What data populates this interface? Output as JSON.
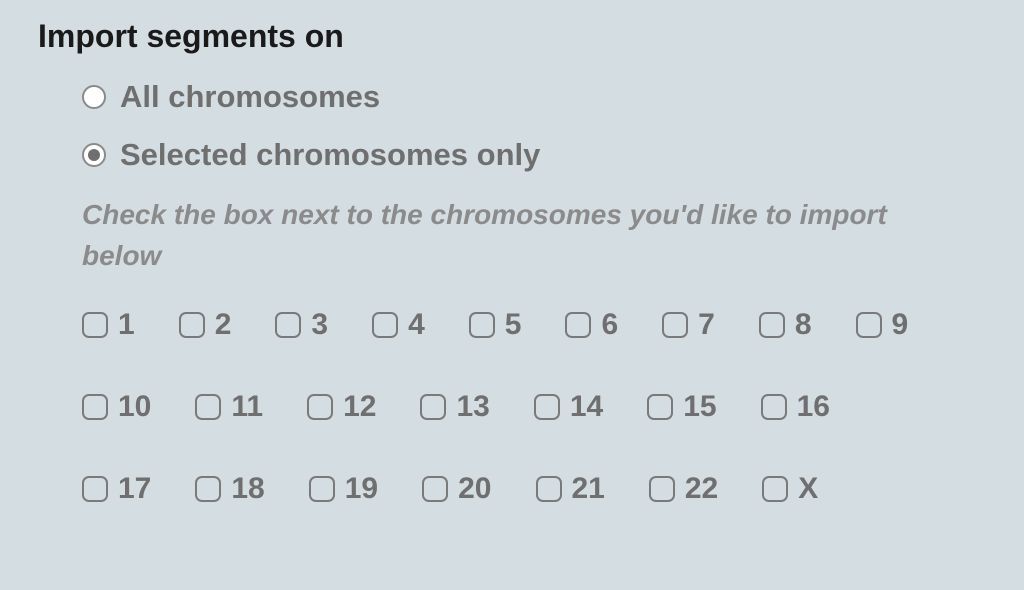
{
  "section": {
    "title": "Import segments on"
  },
  "radios": {
    "all": {
      "label": "All chromosomes",
      "checked": false
    },
    "selected": {
      "label": "Selected chromosomes only",
      "checked": true
    }
  },
  "instruction": "Check the box next to the chromosomes you'd like to import below",
  "chromosomes": {
    "rows": [
      [
        {
          "label": "1",
          "checked": false
        },
        {
          "label": "2",
          "checked": false
        },
        {
          "label": "3",
          "checked": false
        },
        {
          "label": "4",
          "checked": false
        },
        {
          "label": "5",
          "checked": false
        },
        {
          "label": "6",
          "checked": false
        },
        {
          "label": "7",
          "checked": false
        },
        {
          "label": "8",
          "checked": false
        },
        {
          "label": "9",
          "checked": false
        }
      ],
      [
        {
          "label": "10",
          "checked": false
        },
        {
          "label": "11",
          "checked": false
        },
        {
          "label": "12",
          "checked": false
        },
        {
          "label": "13",
          "checked": false
        },
        {
          "label": "14",
          "checked": false
        },
        {
          "label": "15",
          "checked": false
        },
        {
          "label": "16",
          "checked": false
        }
      ],
      [
        {
          "label": "17",
          "checked": false
        },
        {
          "label": "18",
          "checked": false
        },
        {
          "label": "19",
          "checked": false
        },
        {
          "label": "20",
          "checked": false
        },
        {
          "label": "21",
          "checked": false
        },
        {
          "label": "22",
          "checked": false
        },
        {
          "label": "X",
          "checked": false
        }
      ]
    ]
  }
}
